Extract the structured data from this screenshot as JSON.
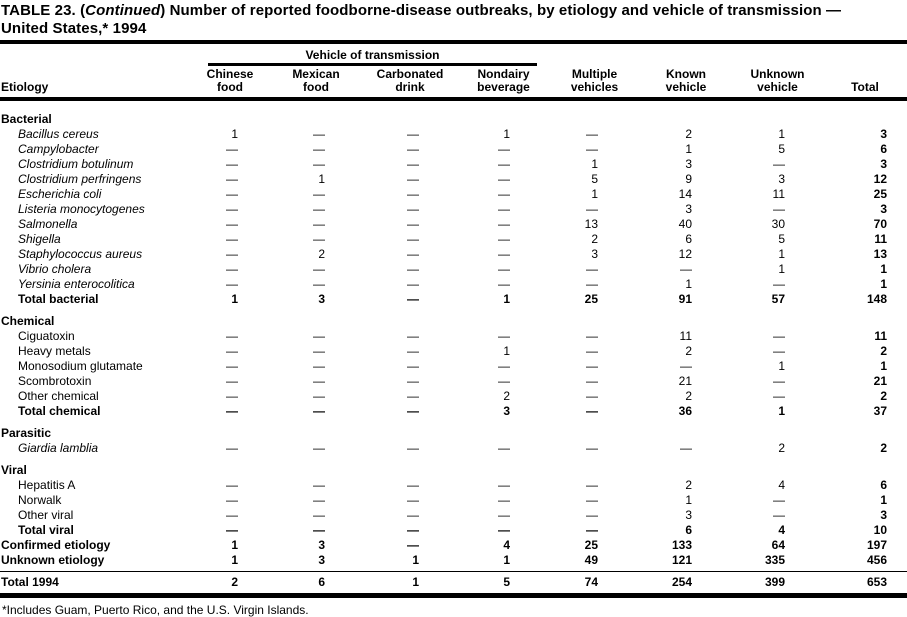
{
  "colors": {
    "ink": "#000000",
    "paper": "#ffffff"
  },
  "title": {
    "line1_prefix": "TABLE 23. (",
    "line1_continued": "Continued",
    "line1_suffix": ") Number of reported foodborne-disease  outbreaks, by etiology and vehicle of transmission —",
    "line2": "United States,* 1994"
  },
  "header": {
    "spanner": "Vehicle of transmission",
    "etiology_label": "Etiology",
    "cols": [
      {
        "l1": "Chinese",
        "l2": "food"
      },
      {
        "l1": "Mexican",
        "l2": "food"
      },
      {
        "l1": "Carbonated",
        "l2": "drink"
      },
      {
        "l1": "Nondairy",
        "l2": "beverage"
      },
      {
        "l1": "Multiple",
        "l2": "vehicles"
      },
      {
        "l1": "Known",
        "l2": "vehicle"
      },
      {
        "l1": "Unknown",
        "l2": "vehicle"
      },
      {
        "l1": "",
        "l2": "Total"
      }
    ]
  },
  "table": {
    "rows": [
      {
        "t": "section",
        "label": "Bacterial"
      },
      {
        "t": "data",
        "italic": true,
        "label": "Bacillus cereus",
        "v": [
          "1",
          "—",
          "—",
          "1",
          "—",
          "2",
          "1",
          "3"
        ]
      },
      {
        "t": "data",
        "italic": true,
        "label": "Campylobacter",
        "v": [
          "—",
          "—",
          "—",
          "—",
          "—",
          "1",
          "5",
          "6"
        ]
      },
      {
        "t": "data",
        "italic": true,
        "label": "Clostridium botulinum",
        "v": [
          "—",
          "—",
          "—",
          "—",
          "1",
          "3",
          "—",
          "3"
        ]
      },
      {
        "t": "data",
        "italic": true,
        "label": "Clostridium perfringens",
        "v": [
          "—",
          "1",
          "—",
          "—",
          "5",
          "9",
          "3",
          "12"
        ]
      },
      {
        "t": "data",
        "italic": true,
        "label": "Escherichia coli",
        "v": [
          "—",
          "—",
          "—",
          "—",
          "1",
          "14",
          "11",
          "25"
        ]
      },
      {
        "t": "data",
        "italic": true,
        "label": "Listeria monocytogenes",
        "v": [
          "—",
          "—",
          "—",
          "—",
          "—",
          "3",
          "—",
          "3"
        ]
      },
      {
        "t": "data",
        "italic": true,
        "label": "Salmonella",
        "v": [
          "—",
          "—",
          "—",
          "—",
          "13",
          "40",
          "30",
          "70"
        ]
      },
      {
        "t": "data",
        "italic": true,
        "label": "Shigella",
        "v": [
          "—",
          "—",
          "—",
          "—",
          "2",
          "6",
          "5",
          "11"
        ]
      },
      {
        "t": "data",
        "italic": true,
        "label": "Staphylococcus aureus",
        "v": [
          "—",
          "2",
          "—",
          "—",
          "3",
          "12",
          "1",
          "13"
        ]
      },
      {
        "t": "data",
        "italic": true,
        "label": "Vibrio cholera",
        "v": [
          "—",
          "—",
          "—",
          "—",
          "—",
          "—",
          "1",
          "1"
        ]
      },
      {
        "t": "data",
        "italic": true,
        "label": "Yersinia enterocolitica",
        "v": [
          "—",
          "—",
          "—",
          "—",
          "—",
          "1",
          "—",
          "1"
        ]
      },
      {
        "t": "total",
        "label": "Total bacterial",
        "v": [
          "1",
          "3",
          "—",
          "1",
          "25",
          "91",
          "57",
          "148"
        ]
      },
      {
        "t": "section",
        "label": "Chemical"
      },
      {
        "t": "data",
        "label": "Ciguatoxin",
        "v": [
          "—",
          "—",
          "—",
          "—",
          "—",
          "11",
          "—",
          "11"
        ]
      },
      {
        "t": "data",
        "label": "Heavy metals",
        "v": [
          "—",
          "—",
          "—",
          "1",
          "—",
          "2",
          "—",
          "2"
        ]
      },
      {
        "t": "data",
        "label": "Monosodium glutamate",
        "v": [
          "—",
          "—",
          "—",
          "—",
          "—",
          "—",
          "1",
          "1"
        ]
      },
      {
        "t": "data",
        "label": "Scombrotoxin",
        "v": [
          "—",
          "—",
          "—",
          "—",
          "—",
          "21",
          "—",
          "21"
        ]
      },
      {
        "t": "data",
        "label": "Other chemical",
        "v": [
          "—",
          "—",
          "—",
          "2",
          "—",
          "2",
          "—",
          "2"
        ]
      },
      {
        "t": "total",
        "label": "Total chemical",
        "v": [
          "—",
          "—",
          "—",
          "3",
          "—",
          "36",
          "1",
          "37"
        ]
      },
      {
        "t": "section",
        "label": "Parasitic"
      },
      {
        "t": "data",
        "italic": true,
        "label": "Giardia lamblia",
        "v": [
          "—",
          "—",
          "—",
          "—",
          "—",
          "—",
          "2",
          "2"
        ]
      },
      {
        "t": "section",
        "label": "Viral"
      },
      {
        "t": "data",
        "label": "Hepatitis A",
        "v": [
          "—",
          "—",
          "—",
          "—",
          "—",
          "2",
          "4",
          "6"
        ]
      },
      {
        "t": "data",
        "label": "Norwalk",
        "v": [
          "—",
          "—",
          "—",
          "—",
          "—",
          "1",
          "—",
          "1"
        ]
      },
      {
        "t": "data",
        "label": "Other viral",
        "v": [
          "—",
          "—",
          "—",
          "—",
          "—",
          "3",
          "—",
          "3"
        ]
      },
      {
        "t": "total",
        "label": "Total viral",
        "v": [
          "—",
          "—",
          "—",
          "—",
          "—",
          "6",
          "4",
          "10"
        ]
      },
      {
        "t": "grand",
        "label": "Confirmed etiology",
        "v": [
          "1",
          "3",
          "—",
          "4",
          "25",
          "133",
          "64",
          "197"
        ]
      },
      {
        "t": "grand",
        "label": "Unknown etiology",
        "v": [
          "1",
          "3",
          "1",
          "1",
          "49",
          "121",
          "335",
          "456"
        ]
      },
      {
        "t": "rule"
      },
      {
        "t": "grand",
        "final": true,
        "label": "Total 1994",
        "v": [
          "2",
          "6",
          "1",
          "5",
          "74",
          "254",
          "399",
          "653"
        ]
      }
    ]
  },
  "footnote": "*Includes Guam, Puerto Rico, and the U.S. Virgin Islands."
}
